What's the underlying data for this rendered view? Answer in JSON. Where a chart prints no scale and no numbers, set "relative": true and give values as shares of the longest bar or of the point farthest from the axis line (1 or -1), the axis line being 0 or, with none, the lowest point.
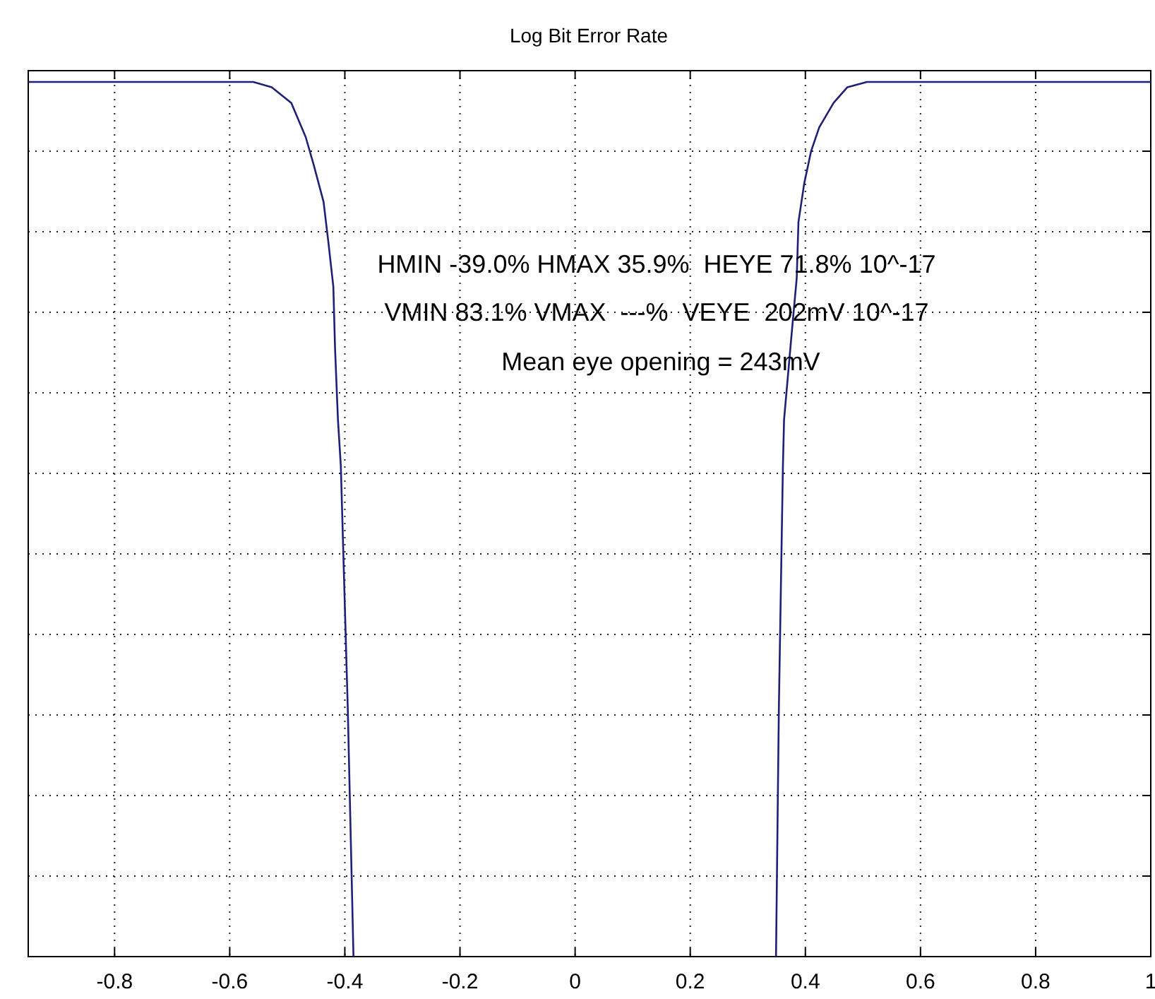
{
  "chart_data": {
    "type": "line",
    "title": "Log Bit Error Rate",
    "relative": true,
    "x": [
      -0.95,
      -0.559,
      -0.527,
      -0.493,
      -0.468,
      -0.454,
      -0.437,
      -0.429,
      -0.42,
      -0.417,
      -0.412,
      -0.407,
      -0.395,
      -0.385,
      null,
      0.349,
      0.354,
      0.361,
      0.363,
      0.376,
      0.385,
      0.388,
      0.398,
      0.41,
      0.424,
      0.449,
      0.473,
      0.507,
      1
    ],
    "series": [
      {
        "color": "#1f1f78",
        "values": [
          1,
          1,
          0.994,
          0.976,
          0.937,
          0.905,
          0.863,
          0.819,
          0.766,
          0.695,
          0.614,
          0.561,
          0.286,
          0,
          null,
          0,
          0.286,
          0.561,
          0.614,
          0.711,
          0.776,
          0.84,
          0.884,
          0.921,
          0.948,
          0.976,
          0.994,
          1,
          1
        ]
      }
    ],
    "xlim": [
      -0.95,
      1
    ],
    "xticks": [
      -0.8,
      -0.6,
      -0.4,
      -0.2,
      0,
      0.2,
      0.4,
      0.6,
      0.8,
      1
    ],
    "grid": true,
    "marker": "none",
    "line_style": "solid",
    "annotations": [
      "HMIN -39.0% HMAX 35.9%  HEYE 71.8% 10^-17",
      "VMIN 83.1% VMAX  ---%  VEYE  202mV 10^-17",
      "Mean eye opening = 243mV"
    ]
  }
}
